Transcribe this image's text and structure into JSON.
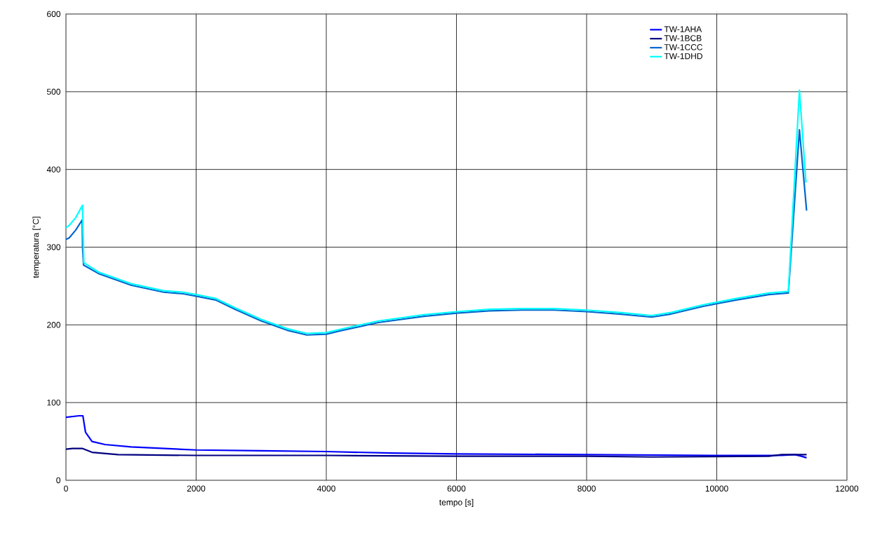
{
  "chart_data": {
    "type": "line",
    "xlabel": "tempo [s]",
    "ylabel": "temperatura [°C]",
    "xlim": [
      0,
      12000
    ],
    "xticks": [
      0,
      2000,
      4000,
      6000,
      8000,
      10000,
      12000
    ],
    "ylim": [
      0,
      600
    ],
    "yticks": [
      0,
      100,
      200,
      300,
      400,
      500,
      600
    ],
    "grid": true,
    "legend": "top right",
    "marker": "none",
    "line_style": "solid",
    "series": [
      {
        "name": "TW-1AHA",
        "color": "#0000ff",
        "x": [
          0,
          200,
          260,
          300,
          400,
          600,
          1000,
          2000,
          3000,
          4000,
          5000,
          6000,
          8000,
          10000,
          11000,
          11200,
          11300,
          11380
        ],
        "values": [
          81,
          83,
          83,
          62,
          50,
          46,
          43,
          39,
          38,
          37,
          35,
          34,
          33,
          32,
          32,
          33,
          31,
          29
        ]
      },
      {
        "name": "TW-1BCB",
        "color": "#000080",
        "x": [
          0,
          100,
          250,
          400,
          800,
          2000,
          4000,
          6000,
          8000,
          9000,
          10800,
          11000,
          11380
        ],
        "values": [
          40,
          41,
          41,
          36,
          33,
          32,
          32,
          31,
          31,
          30,
          31,
          33,
          33
        ]
      },
      {
        "name": "TW-1CCC",
        "color": "#0066cc",
        "x": [
          0,
          50,
          150,
          250,
          255,
          270,
          500,
          1000,
          1500,
          1800,
          2000,
          2300,
          2600,
          3000,
          3400,
          3700,
          4000,
          4200,
          4800,
          5500,
          6000,
          6500,
          7000,
          7500,
          8000,
          8500,
          9000,
          9300,
          9800,
          10300,
          10800,
          11100,
          11270,
          11380
        ],
        "values": [
          310,
          312,
          322,
          335,
          300,
          277,
          266,
          251,
          242,
          240,
          237,
          232,
          220,
          205,
          193,
          187,
          188,
          192,
          203,
          211,
          215,
          218,
          219,
          219,
          217,
          214,
          210,
          214,
          224,
          232,
          239,
          241,
          451,
          347
        ]
      },
      {
        "name": "TW-1DHD",
        "color": "#00ffff",
        "x": [
          0,
          50,
          150,
          255,
          262,
          275,
          500,
          1000,
          1500,
          1800,
          2000,
          2300,
          2600,
          3000,
          3400,
          3700,
          4000,
          4200,
          4800,
          5500,
          6000,
          6500,
          7000,
          7500,
          8000,
          8500,
          9000,
          9300,
          9800,
          10300,
          10800,
          11100,
          11270,
          11370
        ],
        "values": [
          325,
          328,
          338,
          354,
          320,
          280,
          268,
          253,
          244,
          242,
          239,
          234,
          222,
          207,
          195,
          189,
          190,
          194,
          205,
          213,
          217,
          220,
          221,
          221,
          219,
          216,
          212,
          216,
          226,
          234,
          241,
          243,
          502,
          383
        ]
      }
    ]
  }
}
